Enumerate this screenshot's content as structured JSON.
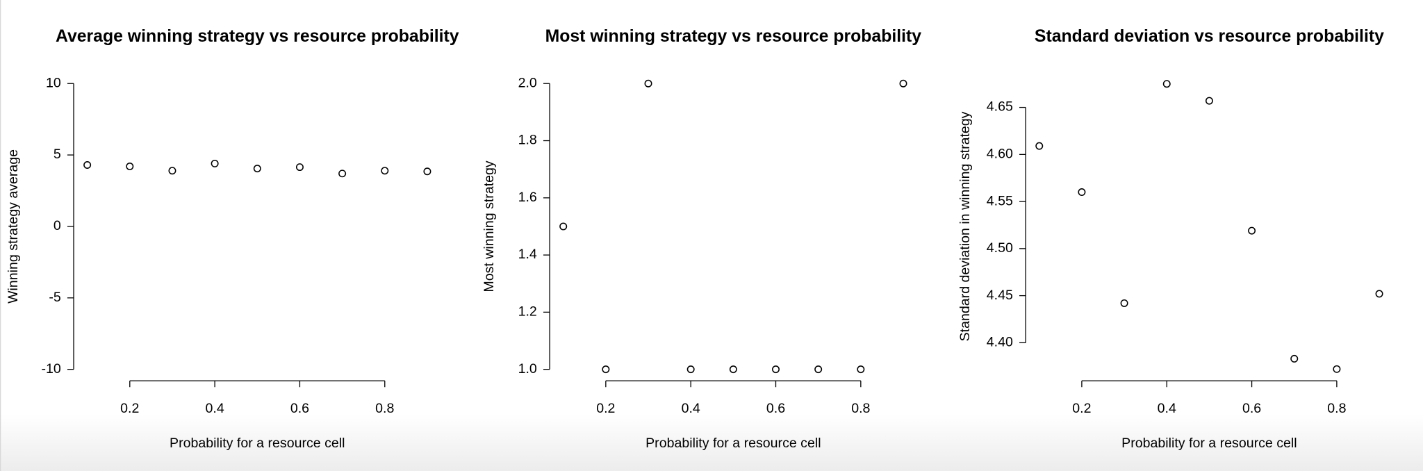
{
  "chart_data": [
    {
      "type": "scatter",
      "title": "Average winning strategy vs resource probability",
      "x_label": "Probability for a resource cell",
      "y_label": "Winning strategy average",
      "x": [
        0.1,
        0.2,
        0.3,
        0.4,
        0.5,
        0.6,
        0.7,
        0.8,
        0.9
      ],
      "values": [
        4.3,
        4.2,
        3.9,
        4.4,
        4.05,
        4.15,
        3.7,
        3.9,
        3.85
      ],
      "color": "#000000",
      "xlim": [
        0.068,
        0.932
      ],
      "xticks": [
        0.2,
        0.4,
        0.6,
        0.8
      ],
      "ylim": [
        -10.8,
        10.8
      ],
      "yticks": [
        -10,
        -5,
        0,
        5,
        10
      ]
    },
    {
      "type": "scatter",
      "title": "Most winning strategy vs resource probability",
      "x_label": "Probability for a resource cell",
      "y_label": "Most winning strategy",
      "x": [
        0.1,
        0.2,
        0.3,
        0.4,
        0.5,
        0.6,
        0.7,
        0.8,
        0.9
      ],
      "values": [
        1.5,
        1,
        2,
        1,
        1,
        1,
        1,
        1,
        2
      ],
      "color": "#000000",
      "xlim": [
        0.068,
        0.932
      ],
      "xticks": [
        0.2,
        0.4,
        0.6,
        0.8
      ],
      "ylim": [
        0.96,
        2.04
      ],
      "yticks": [
        {
          "value": 1,
          "label": "1.0"
        },
        1.2,
        1.4,
        1.6,
        1.8,
        {
          "value": 2,
          "label": "2.0"
        }
      ]
    },
    {
      "type": "scatter",
      "title": "Standard deviation vs resource probability",
      "x_label": "Probability for a resource cell",
      "y_label": "Standard deviation in winning strategy",
      "x": [
        0.1,
        0.2,
        0.3,
        0.4,
        0.5,
        0.6,
        0.7,
        0.8,
        0.9
      ],
      "values": [
        4.609,
        4.56,
        4.442,
        4.675,
        4.657,
        4.519,
        4.383,
        4.372,
        4.452
      ],
      "color": "#000000",
      "xlim": [
        0.068,
        0.932
      ],
      "xticks": [
        0.2,
        0.4,
        0.6,
        0.8
      ],
      "ylim": [
        4.3596,
        4.6875
      ],
      "yticks": [
        {
          "value": 4.4,
          "label": "4.40"
        },
        4.45,
        {
          "value": 4.5,
          "label": "4.50"
        },
        4.55,
        {
          "value": 4.6,
          "label": "4.60"
        },
        4.65
      ]
    }
  ]
}
